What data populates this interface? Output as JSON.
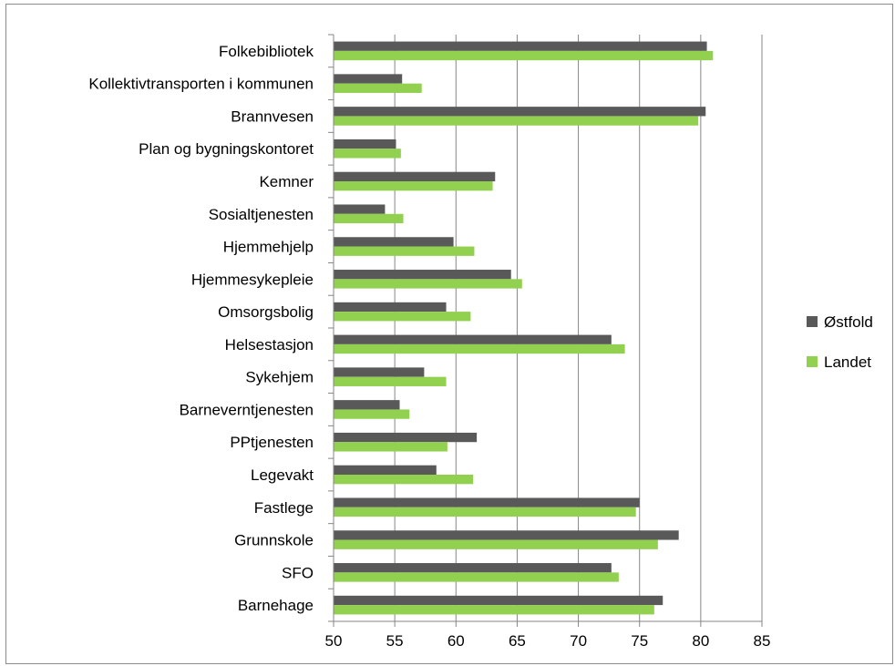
{
  "chart_data": {
    "type": "bar",
    "orientation": "horizontal",
    "categories": [
      "Folkebibliotek",
      "Kollektivtransporten i kommunen",
      "Brannvesen",
      "Plan og bygningskontoret",
      "Kemner",
      "Sosialtjenesten",
      "Hjemmehjelp",
      "Hjemmesykepleie",
      "Omsorgsbolig",
      "Helsestasjon",
      "Sykehjem",
      "Barneverntjenesten",
      "PPtjenesten",
      "Legevakt",
      "Fastlege",
      "Grunnskole",
      "SFO",
      "Barnehage"
    ],
    "series": [
      {
        "name": "Østfold",
        "color": "#595959",
        "values": [
          80.5,
          55.6,
          80.4,
          55.1,
          63.2,
          54.2,
          59.8,
          64.5,
          59.2,
          72.7,
          57.4,
          55.4,
          61.7,
          58.4,
          75.0,
          78.2,
          72.7,
          76.9
        ]
      },
      {
        "name": "Landet",
        "color": "#92d050",
        "values": [
          81.0,
          57.2,
          79.8,
          55.5,
          63.0,
          55.7,
          61.5,
          65.4,
          61.2,
          73.8,
          59.2,
          56.2,
          59.3,
          61.4,
          74.7,
          76.5,
          73.3,
          76.2
        ]
      }
    ],
    "xlim": [
      50,
      85
    ],
    "xticks": [
      50,
      55,
      60,
      65,
      70,
      75,
      80,
      85
    ],
    "grid": "vertical",
    "legend": "right",
    "title": "",
    "xlabel": "",
    "ylabel": ""
  }
}
